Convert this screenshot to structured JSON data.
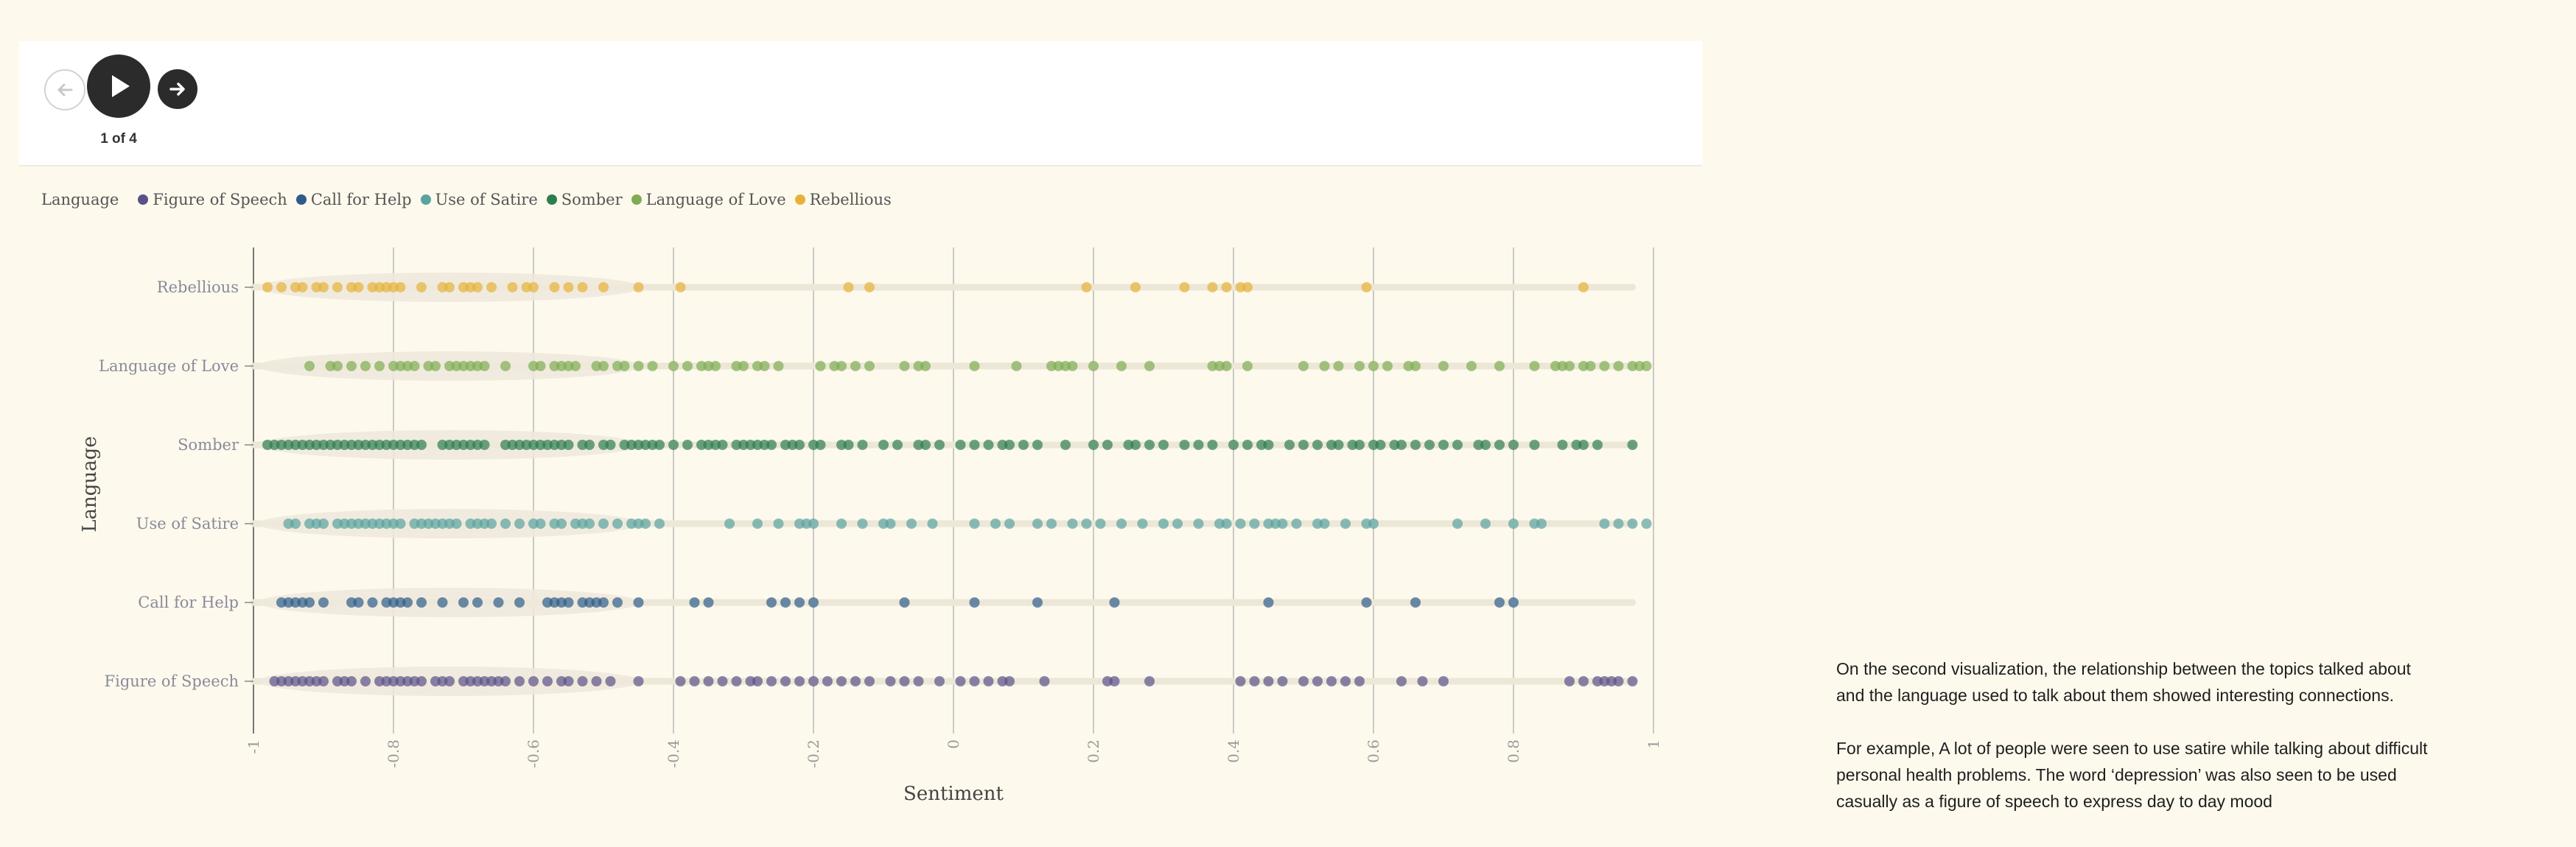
{
  "controls": {
    "step_label": "1 of 4"
  },
  "legend": {
    "title": "Language",
    "items": [
      {
        "label": "Figure of Speech",
        "color": "#5b5189"
      },
      {
        "label": "Call for Help",
        "color": "#2e5c8a"
      },
      {
        "label": "Use of Satire",
        "color": "#5aa3a0"
      },
      {
        "label": "Somber",
        "color": "#2e7d4f"
      },
      {
        "label": "Language of Love",
        "color": "#7fac54"
      },
      {
        "label": "Rebellious",
        "color": "#e6b23b"
      }
    ]
  },
  "chart_data": {
    "type": "scatter",
    "xlabel": "Sentiment",
    "ylabel": "Language",
    "xlim": [
      -1,
      1
    ],
    "xticks": [
      "-1",
      "-0.8",
      "-0.6",
      "-0.4",
      "-0.2",
      "0",
      "0.2",
      "0.4",
      "0.6",
      "0.8",
      "1"
    ],
    "categories": [
      "Rebellious",
      "Language of Love",
      "Somber",
      "Use of Satire",
      "Call for Help",
      "Figure of Speech"
    ],
    "grid": "vertical",
    "series": [
      {
        "name": "Rebellious",
        "color": "#e6b23b",
        "x": [
          -0.98,
          -0.96,
          -0.94,
          -0.93,
          -0.91,
          -0.9,
          -0.88,
          -0.86,
          -0.85,
          -0.83,
          -0.82,
          -0.81,
          -0.8,
          -0.79,
          -0.76,
          -0.73,
          -0.72,
          -0.7,
          -0.69,
          -0.68,
          -0.66,
          -0.63,
          -0.61,
          -0.6,
          -0.57,
          -0.55,
          -0.53,
          -0.5,
          -0.45,
          -0.39,
          -0.15,
          -0.12,
          0.19,
          0.26,
          0.33,
          0.37,
          0.39,
          0.41,
          0.42,
          0.59,
          0.9
        ]
      },
      {
        "name": "Language of Love",
        "color": "#7fac54",
        "x": [
          -0.92,
          -0.89,
          -0.88,
          -0.86,
          -0.84,
          -0.82,
          -0.8,
          -0.79,
          -0.78,
          -0.77,
          -0.75,
          -0.74,
          -0.72,
          -0.71,
          -0.7,
          -0.69,
          -0.68,
          -0.67,
          -0.64,
          -0.6,
          -0.59,
          -0.57,
          -0.56,
          -0.55,
          -0.54,
          -0.51,
          -0.5,
          -0.48,
          -0.47,
          -0.45,
          -0.43,
          -0.4,
          -0.38,
          -0.36,
          -0.35,
          -0.34,
          -0.31,
          -0.3,
          -0.28,
          -0.27,
          -0.25,
          -0.19,
          -0.17,
          -0.16,
          -0.14,
          -0.12,
          -0.07,
          -0.05,
          -0.04,
          0.03,
          0.09,
          0.14,
          0.15,
          0.16,
          0.17,
          0.2,
          0.24,
          0.28,
          0.37,
          0.38,
          0.39,
          0.42,
          0.5,
          0.53,
          0.55,
          0.58,
          0.6,
          0.62,
          0.65,
          0.66,
          0.7,
          0.74,
          0.78,
          0.83,
          0.86,
          0.87,
          0.88,
          0.9,
          0.91,
          0.93,
          0.95,
          0.97,
          0.98,
          0.99
        ]
      },
      {
        "name": "Somber",
        "color": "#2e7d4f",
        "x": [
          -0.98,
          -0.97,
          -0.96,
          -0.95,
          -0.94,
          -0.93,
          -0.92,
          -0.91,
          -0.9,
          -0.89,
          -0.88,
          -0.87,
          -0.86,
          -0.85,
          -0.84,
          -0.83,
          -0.82,
          -0.81,
          -0.8,
          -0.79,
          -0.78,
          -0.77,
          -0.76,
          -0.73,
          -0.72,
          -0.71,
          -0.7,
          -0.69,
          -0.68,
          -0.67,
          -0.64,
          -0.63,
          -0.62,
          -0.61,
          -0.6,
          -0.59,
          -0.58,
          -0.57,
          -0.56,
          -0.55,
          -0.53,
          -0.52,
          -0.5,
          -0.49,
          -0.47,
          -0.46,
          -0.45,
          -0.44,
          -0.43,
          -0.42,
          -0.4,
          -0.38,
          -0.36,
          -0.35,
          -0.34,
          -0.33,
          -0.31,
          -0.3,
          -0.29,
          -0.28,
          -0.27,
          -0.26,
          -0.24,
          -0.23,
          -0.22,
          -0.2,
          -0.19,
          -0.16,
          -0.15,
          -0.13,
          -0.1,
          -0.08,
          -0.05,
          -0.04,
          -0.02,
          0.01,
          0.03,
          0.05,
          0.07,
          0.08,
          0.1,
          0.12,
          0.16,
          0.2,
          0.22,
          0.25,
          0.26,
          0.28,
          0.3,
          0.33,
          0.35,
          0.37,
          0.4,
          0.42,
          0.44,
          0.45,
          0.48,
          0.5,
          0.52,
          0.54,
          0.55,
          0.57,
          0.58,
          0.6,
          0.61,
          0.63,
          0.64,
          0.66,
          0.68,
          0.7,
          0.72,
          0.75,
          0.76,
          0.78,
          0.8,
          0.83,
          0.87,
          0.89,
          0.9,
          0.92,
          0.97
        ]
      },
      {
        "name": "Use of Satire",
        "color": "#5aa3a0",
        "x": [
          -0.95,
          -0.94,
          -0.92,
          -0.91,
          -0.9,
          -0.88,
          -0.87,
          -0.86,
          -0.85,
          -0.84,
          -0.83,
          -0.82,
          -0.81,
          -0.8,
          -0.79,
          -0.77,
          -0.76,
          -0.75,
          -0.74,
          -0.73,
          -0.72,
          -0.71,
          -0.69,
          -0.68,
          -0.67,
          -0.66,
          -0.64,
          -0.62,
          -0.6,
          -0.59,
          -0.57,
          -0.56,
          -0.54,
          -0.53,
          -0.52,
          -0.5,
          -0.48,
          -0.46,
          -0.45,
          -0.44,
          -0.42,
          -0.32,
          -0.28,
          -0.25,
          -0.22,
          -0.21,
          -0.2,
          -0.16,
          -0.13,
          -0.1,
          -0.09,
          -0.06,
          -0.03,
          0.03,
          0.06,
          0.08,
          0.12,
          0.14,
          0.17,
          0.19,
          0.21,
          0.24,
          0.27,
          0.3,
          0.32,
          0.35,
          0.38,
          0.39,
          0.41,
          0.43,
          0.45,
          0.46,
          0.47,
          0.49,
          0.52,
          0.53,
          0.56,
          0.59,
          0.6,
          0.72,
          0.76,
          0.8,
          0.83,
          0.84,
          0.93,
          0.95,
          0.97,
          0.99
        ]
      },
      {
        "name": "Call for Help",
        "color": "#2e5c8a",
        "x": [
          -0.96,
          -0.95,
          -0.94,
          -0.93,
          -0.92,
          -0.9,
          -0.86,
          -0.85,
          -0.83,
          -0.81,
          -0.8,
          -0.79,
          -0.78,
          -0.76,
          -0.73,
          -0.7,
          -0.68,
          -0.65,
          -0.62,
          -0.58,
          -0.57,
          -0.56,
          -0.55,
          -0.53,
          -0.52,
          -0.51,
          -0.5,
          -0.48,
          -0.45,
          -0.37,
          -0.35,
          -0.26,
          -0.24,
          -0.22,
          -0.2,
          -0.07,
          0.03,
          0.12,
          0.23,
          0.45,
          0.59,
          0.66,
          0.78,
          0.8
        ]
      },
      {
        "name": "Figure of Speech",
        "color": "#5b5189",
        "x": [
          -0.97,
          -0.96,
          -0.95,
          -0.94,
          -0.93,
          -0.92,
          -0.91,
          -0.9,
          -0.88,
          -0.87,
          -0.86,
          -0.84,
          -0.82,
          -0.81,
          -0.8,
          -0.79,
          -0.78,
          -0.77,
          -0.76,
          -0.74,
          -0.73,
          -0.72,
          -0.7,
          -0.69,
          -0.68,
          -0.67,
          -0.66,
          -0.65,
          -0.64,
          -0.62,
          -0.6,
          -0.58,
          -0.56,
          -0.55,
          -0.53,
          -0.51,
          -0.49,
          -0.45,
          -0.39,
          -0.37,
          -0.35,
          -0.33,
          -0.31,
          -0.29,
          -0.28,
          -0.26,
          -0.24,
          -0.22,
          -0.2,
          -0.18,
          -0.16,
          -0.14,
          -0.12,
          -0.09,
          -0.07,
          -0.05,
          -0.02,
          0.01,
          0.03,
          0.05,
          0.07,
          0.08,
          0.13,
          0.22,
          0.23,
          0.28,
          0.41,
          0.43,
          0.45,
          0.47,
          0.5,
          0.52,
          0.54,
          0.56,
          0.58,
          0.64,
          0.67,
          0.7,
          0.88,
          0.9,
          0.92,
          0.93,
          0.94,
          0.95,
          0.97
        ]
      }
    ]
  },
  "narrative": {
    "paragraphs": [
      "On the second visualization, the relationship between the topics talked about and the language used to talk about them showed interesting connections.",
      "For example, A lot of people were seen to use satire while talking about difficult personal health problems. The word ‘depression’ was also seen to be used casually as a figure of speech to express day to day mood"
    ]
  }
}
